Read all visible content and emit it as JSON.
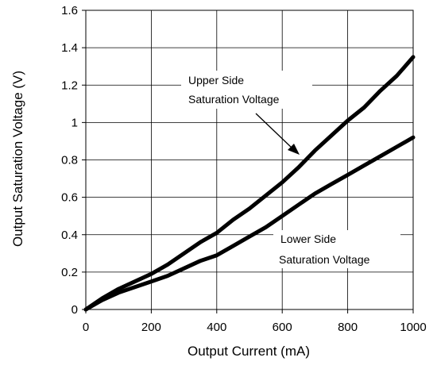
{
  "chart_data": {
    "type": "line",
    "title": "",
    "xlabel": "Output Current (mA)",
    "ylabel": "Output Saturation Voltage (V)",
    "xlim": [
      0,
      1000
    ],
    "ylim": [
      0,
      1.6
    ],
    "xticks": [
      0,
      200,
      400,
      600,
      800,
      1000
    ],
    "xtick_labels": [
      "0",
      "200",
      "400",
      "600",
      "800",
      "1000"
    ],
    "yticks": [
      0,
      0.2,
      0.4,
      0.6,
      0.8,
      1.0,
      1.2,
      1.4,
      1.6
    ],
    "ytick_labels": [
      "0",
      "0.2",
      "0.4",
      "0.6",
      "0.8",
      "1",
      "1.2",
      "1.4",
      "1.6"
    ],
    "grid": true,
    "legend": "none",
    "series": [
      {
        "id": "upper",
        "x": [
          0,
          50,
          100,
          150,
          200,
          250,
          300,
          350,
          400,
          450,
          500,
          550,
          600,
          650,
          700,
          750,
          800,
          850,
          900,
          950,
          1000
        ],
        "y": [
          0,
          0.06,
          0.11,
          0.15,
          0.19,
          0.24,
          0.3,
          0.36,
          0.41,
          0.48,
          0.54,
          0.61,
          0.68,
          0.76,
          0.85,
          0.93,
          1.01,
          1.08,
          1.17,
          1.25,
          1.35
        ]
      },
      {
        "id": "lower",
        "x": [
          0,
          50,
          100,
          150,
          200,
          250,
          300,
          350,
          400,
          450,
          500,
          550,
          600,
          650,
          700,
          750,
          800,
          850,
          900,
          950,
          1000
        ],
        "y": [
          0,
          0.05,
          0.09,
          0.12,
          0.15,
          0.18,
          0.22,
          0.26,
          0.29,
          0.34,
          0.39,
          0.44,
          0.5,
          0.56,
          0.62,
          0.67,
          0.72,
          0.77,
          0.82,
          0.87,
          0.92
        ]
      }
    ],
    "annotations": [
      {
        "id": "upper",
        "lines": [
          "Upper Side",
          "Saturation Voltage"
        ],
        "arrow_to": [
          660,
          0.8
        ]
      },
      {
        "id": "lower",
        "lines": [
          "Lower Side",
          "Saturation Voltage"
        ]
      }
    ]
  }
}
